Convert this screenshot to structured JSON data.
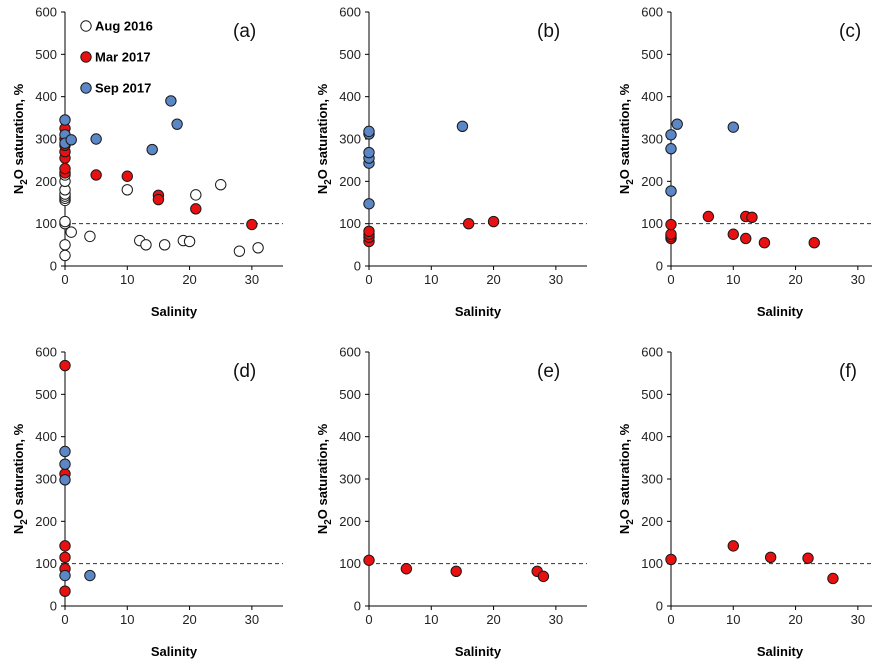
{
  "figure": {
    "colors": {
      "aug_2016": "#ffffff",
      "mar_2017": "#e81010",
      "sep_2017": "#5b87c6",
      "marker_stroke": "#1a1a1a",
      "axis": "#000000",
      "reference_line": "#333333"
    },
    "legend": [
      {
        "series": "aug_2016",
        "label": "Aug  2016"
      },
      {
        "series": "mar_2017",
        "label": "Mar  2017"
      },
      {
        "series": "sep_2017",
        "label": "Sep  2017"
      }
    ]
  },
  "chart_data": [
    {
      "type": "scatter",
      "panel_label": "(a)",
      "xlabel": "Salinity",
      "ylabel": [
        "N",
        "2",
        "O saturation, %"
      ],
      "xlim": [
        0,
        35
      ],
      "ylim": [
        0,
        600
      ],
      "xticks": [
        0,
        10,
        20,
        30
      ],
      "yticks": [
        0,
        100,
        200,
        300,
        400,
        500,
        600
      ],
      "reference_y": 100,
      "legend": true,
      "series": [
        {
          "name": "Aug 2016",
          "key": "aug_2016",
          "points": [
            [
              0,
              25
            ],
            [
              0,
              50
            ],
            [
              0,
              100
            ],
            [
              0,
              105
            ],
            [
              0,
              155
            ],
            [
              0,
              160
            ],
            [
              0,
              165
            ],
            [
              0,
              170
            ],
            [
              0,
              180
            ],
            [
              0,
              200
            ],
            [
              0,
              215
            ],
            [
              1,
              80
            ],
            [
              4,
              70
            ],
            [
              10,
              180
            ],
            [
              12,
              60
            ],
            [
              13,
              50
            ],
            [
              16,
              50
            ],
            [
              19,
              60
            ],
            [
              20,
              58
            ],
            [
              21,
              168
            ],
            [
              25,
              192
            ],
            [
              28,
              35
            ],
            [
              31,
              43
            ]
          ]
        },
        {
          "name": "Mar 2017",
          "key": "mar_2017",
          "points": [
            [
              0,
              220
            ],
            [
              0,
              230
            ],
            [
              0,
              255
            ],
            [
              0,
              270
            ],
            [
              0,
              285
            ],
            [
              0,
              300
            ],
            [
              0,
              325
            ],
            [
              5,
              215
            ],
            [
              10,
              212
            ],
            [
              15,
              167
            ],
            [
              15,
              157
            ],
            [
              21,
              135
            ],
            [
              30,
              98
            ]
          ]
        },
        {
          "name": "Sep 2017",
          "key": "sep_2017",
          "points": [
            [
              0,
              345
            ],
            [
              0,
              310
            ],
            [
              0,
              290
            ],
            [
              1,
              298
            ],
            [
              5,
              300
            ],
            [
              14,
              275
            ],
            [
              17,
              390
            ],
            [
              18,
              335
            ]
          ]
        }
      ]
    },
    {
      "type": "scatter",
      "panel_label": "(b)",
      "xlabel": "Salinity",
      "ylabel": [
        "N",
        "2",
        "O saturation, %"
      ],
      "xlim": [
        0,
        35
      ],
      "ylim": [
        0,
        600
      ],
      "xticks": [
        0,
        10,
        20,
        30
      ],
      "yticks": [
        0,
        100,
        200,
        300,
        400,
        500,
        600
      ],
      "reference_y": 100,
      "series": [
        {
          "name": "Mar 2017",
          "key": "mar_2017",
          "points": [
            [
              0,
              58
            ],
            [
              0,
              68
            ],
            [
              0,
              75
            ],
            [
              0,
              82
            ],
            [
              16,
              100
            ],
            [
              20,
              105
            ]
          ]
        },
        {
          "name": "Sep 2017",
          "key": "sep_2017",
          "points": [
            [
              0,
              147
            ],
            [
              0,
              243
            ],
            [
              0,
              255
            ],
            [
              0,
              268
            ],
            [
              0,
              312
            ],
            [
              0,
              318
            ],
            [
              15,
              330
            ]
          ]
        }
      ]
    },
    {
      "type": "scatter",
      "panel_label": "(c)",
      "xlabel": "Salinity",
      "ylabel": [
        "N",
        "2",
        "O saturation, %"
      ],
      "xlim": [
        0,
        35
      ],
      "ylim": [
        0,
        600
      ],
      "xticks": [
        0,
        10,
        20,
        30
      ],
      "yticks": [
        0,
        100,
        200,
        300,
        400,
        500,
        600
      ],
      "reference_y": 100,
      "series": [
        {
          "name": "Mar 2017",
          "key": "mar_2017",
          "points": [
            [
              0,
              65
            ],
            [
              0,
              70
            ],
            [
              0,
              75
            ],
            [
              0,
              98
            ],
            [
              6,
              117
            ],
            [
              10,
              75
            ],
            [
              12,
              65
            ],
            [
              12,
              117
            ],
            [
              13,
              115
            ],
            [
              15,
              55
            ],
            [
              23,
              55
            ]
          ]
        },
        {
          "name": "Sep 2017",
          "key": "sep_2017",
          "points": [
            [
              0,
              177
            ],
            [
              0,
              277
            ],
            [
              0,
              310
            ],
            [
              1,
              335
            ],
            [
              10,
              328
            ]
          ]
        }
      ]
    },
    {
      "type": "scatter",
      "panel_label": "(d)",
      "xlabel": "Salinity",
      "ylabel": [
        "N",
        "2",
        "O saturation, %"
      ],
      "xlim": [
        0,
        35
      ],
      "ylim": [
        0,
        600
      ],
      "xticks": [
        0,
        10,
        20,
        30
      ],
      "yticks": [
        0,
        100,
        200,
        300,
        400,
        500,
        600
      ],
      "reference_y": 100,
      "series": [
        {
          "name": "Mar 2017",
          "key": "mar_2017",
          "points": [
            [
              0,
              568
            ],
            [
              0,
              312
            ],
            [
              0,
              142
            ],
            [
              0,
              115
            ],
            [
              0,
              88
            ],
            [
              0,
              35
            ]
          ]
        },
        {
          "name": "Sep 2017",
          "key": "sep_2017",
          "points": [
            [
              0,
              365
            ],
            [
              0,
              335
            ],
            [
              0,
              298
            ],
            [
              0,
              72
            ],
            [
              4,
              72
            ]
          ]
        }
      ]
    },
    {
      "type": "scatter",
      "panel_label": "(e)",
      "xlabel": "Salinity",
      "ylabel": [
        "N",
        "2",
        "O saturation, %"
      ],
      "xlim": [
        0,
        35
      ],
      "ylim": [
        0,
        600
      ],
      "xticks": [
        0,
        10,
        20,
        30
      ],
      "yticks": [
        0,
        100,
        200,
        300,
        400,
        500,
        600
      ],
      "reference_y": 100,
      "series": [
        {
          "name": "Mar 2017",
          "key": "mar_2017",
          "points": [
            [
              0,
              108
            ],
            [
              6,
              88
            ],
            [
              14,
              82
            ],
            [
              27,
              82
            ],
            [
              28,
              70
            ]
          ]
        }
      ]
    },
    {
      "type": "scatter",
      "panel_label": "(f)",
      "xlabel": "Salinity",
      "ylabel": [
        "N",
        "2",
        "O saturation, %"
      ],
      "xlim": [
        0,
        35
      ],
      "ylim": [
        0,
        600
      ],
      "xticks": [
        0,
        10,
        20,
        30
      ],
      "yticks": [
        0,
        100,
        200,
        300,
        400,
        500,
        600
      ],
      "reference_y": 100,
      "series": [
        {
          "name": "Mar 2017",
          "key": "mar_2017",
          "points": [
            [
              0,
              110
            ],
            [
              10,
              142
            ],
            [
              16,
              115
            ],
            [
              22,
              113
            ],
            [
              26,
              65
            ]
          ]
        }
      ]
    }
  ]
}
